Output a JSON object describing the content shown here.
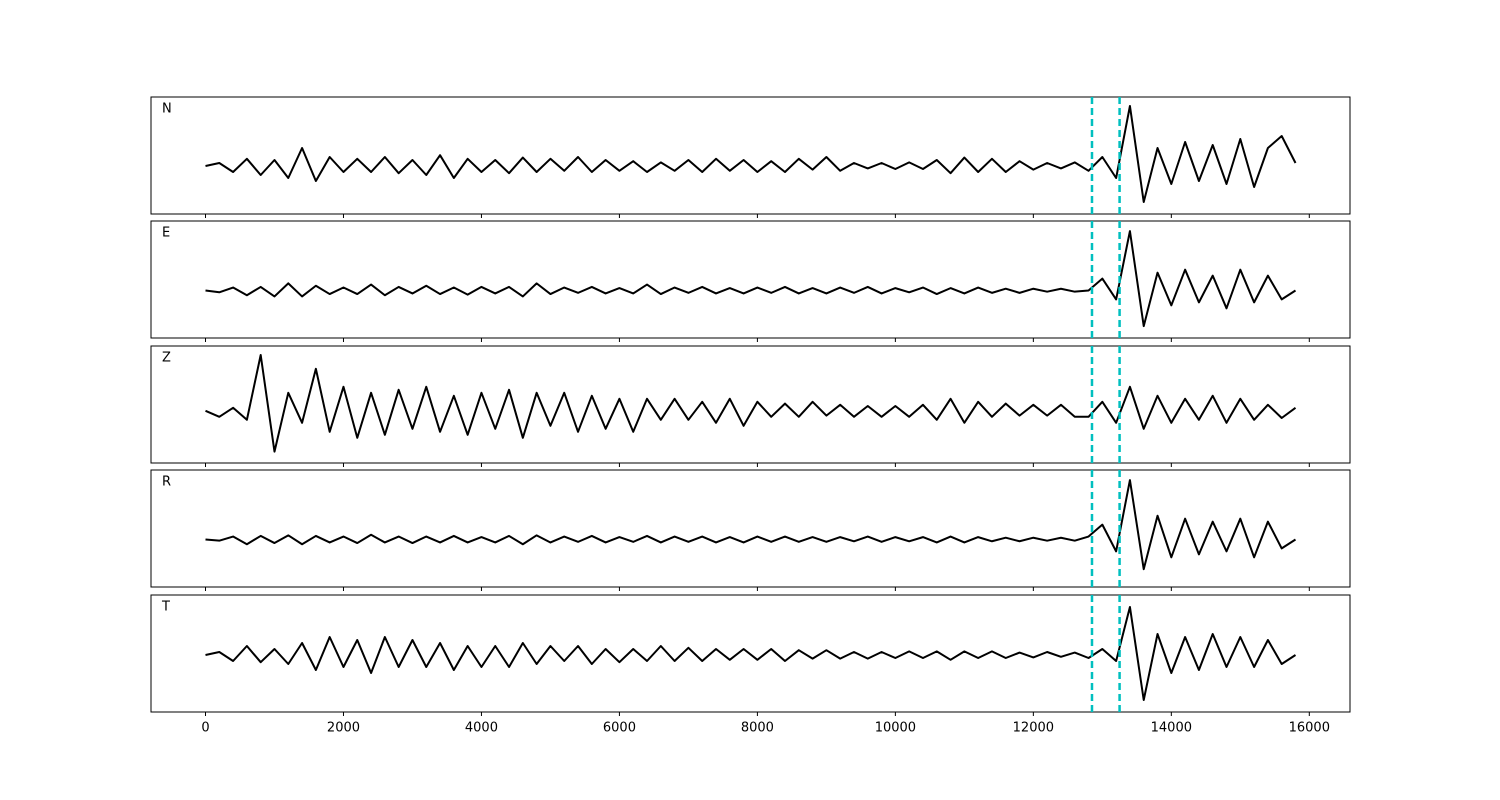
{
  "chart_data": {
    "type": "line",
    "x": [
      0,
      200,
      400,
      600,
      800,
      1000,
      1200,
      1400,
      1600,
      1800,
      2000,
      2200,
      2400,
      2600,
      2800,
      3000,
      3200,
      3400,
      3600,
      3800,
      4000,
      4200,
      4400,
      4600,
      4800,
      5000,
      5200,
      5400,
      5600,
      5800,
      6000,
      6200,
      6400,
      6600,
      6800,
      7000,
      7200,
      7400,
      7600,
      7800,
      8000,
      8200,
      8400,
      8600,
      8800,
      9000,
      9200,
      9400,
      9600,
      9800,
      10000,
      10200,
      10400,
      10600,
      10800,
      11000,
      11200,
      11400,
      11600,
      11800,
      12000,
      12200,
      12400,
      12600,
      12800,
      13000,
      13200,
      13400,
      13600,
      13800,
      14000,
      14200,
      14400,
      14600,
      14800,
      15000,
      15200,
      15400,
      15600,
      15800
    ],
    "xlim": [
      -790,
      16590
    ],
    "xticks": [
      0,
      2000,
      4000,
      6000,
      8000,
      10000,
      12000,
      14000,
      16000
    ],
    "vlines": {
      "x": [
        12850,
        13250
      ],
      "color": "#00bfbf"
    },
    "series": [
      {
        "name": "N",
        "color": "#000000",
        "ylim": [
          -0.8,
          1.15
        ],
        "values": [
          0,
          0.05,
          -0.1,
          0.12,
          -0.15,
          0.1,
          -0.2,
          0.3,
          -0.25,
          0.15,
          -0.1,
          0.12,
          -0.1,
          0.15,
          -0.12,
          0.1,
          -0.15,
          0.18,
          -0.2,
          0.12,
          -0.1,
          0.1,
          -0.12,
          0.14,
          -0.1,
          0.12,
          -0.08,
          0.15,
          -0.1,
          0.1,
          -0.08,
          0.08,
          -0.1,
          0.06,
          -0.08,
          0.1,
          -0.1,
          0.12,
          -0.08,
          0.1,
          -0.1,
          0.08,
          -0.1,
          0.12,
          -0.06,
          0.15,
          -0.08,
          0.05,
          -0.04,
          0.05,
          -0.05,
          0.06,
          -0.05,
          0.1,
          -0.12,
          0.14,
          -0.1,
          0.12,
          -0.1,
          0.08,
          -0.06,
          0.05,
          -0.04,
          0.06,
          -0.08,
          0.15,
          -0.2,
          1.0,
          -0.6,
          0.3,
          -0.3,
          0.4,
          -0.25,
          0.35,
          -0.3,
          0.45,
          -0.35,
          0.3,
          0.5,
          0.05
        ]
      },
      {
        "name": "E",
        "color": "#000000",
        "ylim": [
          -0.8,
          1.17
        ],
        "values": [
          0,
          -0.03,
          0.05,
          -0.08,
          0.06,
          -0.1,
          0.12,
          -0.1,
          0.08,
          -0.06,
          0.05,
          -0.06,
          0.1,
          -0.08,
          0.06,
          -0.05,
          0.08,
          -0.06,
          0.05,
          -0.07,
          0.06,
          -0.05,
          0.06,
          -0.1,
          0.12,
          -0.06,
          0.05,
          -0.04,
          0.06,
          -0.05,
          0.04,
          -0.05,
          0.1,
          -0.06,
          0.05,
          -0.04,
          0.06,
          -0.05,
          0.04,
          -0.05,
          0.05,
          -0.04,
          0.06,
          -0.05,
          0.04,
          -0.05,
          0.05,
          -0.04,
          0.06,
          -0.05,
          0.04,
          -0.03,
          0.05,
          -0.06,
          0.04,
          -0.05,
          0.05,
          -0.04,
          0.03,
          -0.04,
          0.03,
          -0.02,
          0.03,
          -0.02,
          0.0,
          0.2,
          -0.15,
          1.0,
          -0.6,
          0.3,
          -0.25,
          0.35,
          -0.2,
          0.25,
          -0.3,
          0.35,
          -0.2,
          0.25,
          -0.15,
          0.0
        ]
      },
      {
        "name": "Z",
        "color": "#000000",
        "ylim": [
          -0.87,
          1.08
        ],
        "values": [
          0,
          -0.1,
          0.05,
          -0.15,
          0.93,
          -0.68,
          0.3,
          -0.2,
          0.7,
          -0.35,
          0.4,
          -0.45,
          0.3,
          -0.4,
          0.35,
          -0.3,
          0.4,
          -0.35,
          0.25,
          -0.4,
          0.3,
          -0.3,
          0.35,
          -0.45,
          0.3,
          -0.25,
          0.3,
          -0.35,
          0.25,
          -0.3,
          0.2,
          -0.35,
          0.2,
          -0.15,
          0.2,
          -0.15,
          0.15,
          -0.2,
          0.2,
          -0.25,
          0.15,
          -0.1,
          0.12,
          -0.1,
          0.15,
          -0.08,
          0.1,
          -0.1,
          0.08,
          -0.1,
          0.08,
          -0.1,
          0.1,
          -0.15,
          0.2,
          -0.2,
          0.15,
          -0.1,
          0.12,
          -0.08,
          0.1,
          -0.08,
          0.1,
          -0.1,
          -0.1,
          0.15,
          -0.2,
          0.4,
          -0.3,
          0.25,
          -0.2,
          0.2,
          -0.15,
          0.25,
          -0.2,
          0.2,
          -0.15,
          0.1,
          -0.12,
          0.05
        ]
      },
      {
        "name": "R",
        "color": "#000000",
        "ylim": [
          -0.8,
          1.17
        ],
        "values": [
          0,
          -0.02,
          0.05,
          -0.08,
          0.06,
          -0.06,
          0.07,
          -0.08,
          0.06,
          -0.05,
          0.05,
          -0.06,
          0.08,
          -0.05,
          0.05,
          -0.06,
          0.05,
          -0.05,
          0.06,
          -0.05,
          0.04,
          -0.05,
          0.06,
          -0.08,
          0.07,
          -0.05,
          0.05,
          -0.04,
          0.06,
          -0.05,
          0.04,
          -0.04,
          0.06,
          -0.05,
          0.05,
          -0.04,
          0.05,
          -0.05,
          0.04,
          -0.05,
          0.05,
          -0.04,
          0.05,
          -0.04,
          0.04,
          -0.04,
          0.04,
          -0.03,
          0.05,
          -0.04,
          0.04,
          -0.03,
          0.04,
          -0.05,
          0.05,
          -0.05,
          0.04,
          -0.03,
          0.03,
          -0.03,
          0.03,
          -0.02,
          0.03,
          -0.02,
          0.05,
          0.25,
          -0.2,
          1.0,
          -0.5,
          0.4,
          -0.3,
          0.35,
          -0.25,
          0.3,
          -0.2,
          0.35,
          -0.3,
          0.3,
          -0.15,
          0.0
        ]
      },
      {
        "name": "T",
        "color": "#000000",
        "ylim": [
          -0.95,
          1.0
        ],
        "values": [
          0,
          0.05,
          -0.1,
          0.15,
          -0.12,
          0.1,
          -0.15,
          0.2,
          -0.25,
          0.3,
          -0.2,
          0.25,
          -0.3,
          0.3,
          -0.2,
          0.25,
          -0.2,
          0.2,
          -0.25,
          0.15,
          -0.2,
          0.15,
          -0.2,
          0.2,
          -0.15,
          0.15,
          -0.1,
          0.15,
          -0.15,
          0.1,
          -0.12,
          0.1,
          -0.1,
          0.15,
          -0.1,
          0.12,
          -0.1,
          0.1,
          -0.08,
          0.1,
          -0.08,
          0.1,
          -0.1,
          0.08,
          -0.06,
          0.08,
          -0.06,
          0.05,
          -0.06,
          0.05,
          -0.05,
          0.06,
          -0.05,
          0.06,
          -0.08,
          0.06,
          -0.05,
          0.06,
          -0.05,
          0.04,
          -0.04,
          0.05,
          -0.03,
          0.04,
          -0.05,
          0.1,
          -0.1,
          0.8,
          -0.75,
          0.35,
          -0.3,
          0.3,
          -0.25,
          0.35,
          -0.2,
          0.3,
          -0.2,
          0.25,
          -0.15,
          0.0
        ]
      }
    ]
  }
}
